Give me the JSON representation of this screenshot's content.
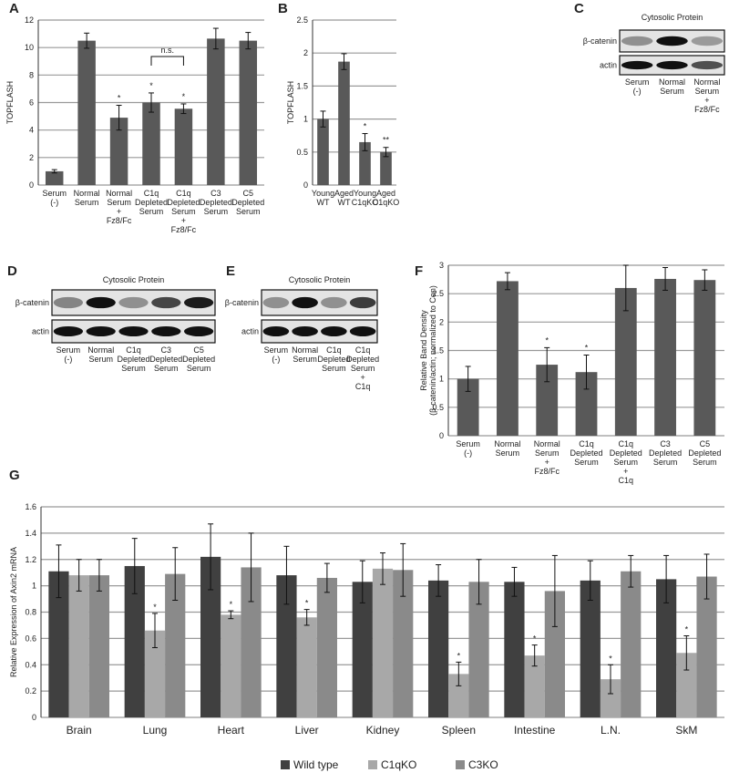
{
  "chart_data": [
    {
      "type": "bar",
      "panel": "A",
      "ylabel": "TOPFLASH",
      "categories": [
        "Serum\n(-)",
        "Normal\nSerum",
        "Normal\nSerum\n+\nFz8/Fc",
        "C1q\nDepleted\nSerum",
        "C1q\nDepleted\nSerum\n+\nFz8/Fc",
        "C3\nDepleted\nSerum",
        "C5\nDepleted\nSerum"
      ],
      "values": [
        1.0,
        10.5,
        4.9,
        6.0,
        5.55,
        10.65,
        10.5
      ],
      "errors": [
        0.12,
        0.55,
        0.9,
        0.7,
        0.35,
        0.75,
        0.6
      ],
      "significance": [
        null,
        null,
        "*",
        "*",
        "*",
        null,
        null
      ],
      "annotations": [
        "n.s."
      ],
      "color": "#595959",
      "ylim": [
        0,
        12
      ],
      "yticks": [
        0,
        2,
        4,
        6,
        8,
        10,
        12
      ],
      "grid": true
    },
    {
      "type": "bar",
      "panel": "B",
      "ylabel": "TOPFLASH",
      "categories": [
        "Young\nWT",
        "Aged\nWT",
        "Young\nC1qKO",
        "Aged\nC1qKO"
      ],
      "values": [
        1.0,
        1.87,
        0.65,
        0.5
      ],
      "errors": [
        0.12,
        0.12,
        0.13,
        0.07
      ],
      "significance": [
        null,
        null,
        "*",
        "**"
      ],
      "color": "#595959",
      "ylim": [
        0,
        2.5
      ],
      "yticks": [
        0,
        0.5,
        1,
        1.5,
        2,
        2.5
      ],
      "grid": true
    },
    {
      "type": "bar",
      "panel": "F",
      "ylabel": "Relative Band Density\n(β-catenin/actin; normalized to Con)",
      "categories": [
        "Serum\n(-)",
        "Normal\nSerum",
        "Normal\nSerum\n+\nFz8/Fc",
        "C1q\nDepleted\nSerum",
        "C1q\nDepleted\nSerum\n+\nC1q",
        "C3\nDepleted\nSerum",
        "C5\nDepleted\nSerum"
      ],
      "values": [
        1.0,
        2.72,
        1.25,
        1.12,
        2.6,
        2.76,
        2.74
      ],
      "errors": [
        0.22,
        0.15,
        0.3,
        0.3,
        0.4,
        0.2,
        0.18
      ],
      "significance": [
        null,
        null,
        "*",
        "*",
        null,
        null,
        null
      ],
      "color": "#595959",
      "ylim": [
        0,
        3
      ],
      "yticks": [
        0,
        0.5,
        1,
        1.5,
        2,
        2.5,
        3
      ],
      "grid": true
    },
    {
      "type": "grouped-bar",
      "panel": "G",
      "ylabel": "Relative Expression of Axin2 mRNA",
      "categories": [
        "Brain",
        "Lung",
        "Heart",
        "Liver",
        "Kidney",
        "Spleen",
        "Intestine",
        "L.N.",
        "SkM"
      ],
      "series": [
        {
          "name": "Wild type",
          "color": "#404040",
          "values": [
            1.11,
            1.15,
            1.22,
            1.08,
            1.03,
            1.04,
            1.03,
            1.04,
            1.05
          ],
          "errors": [
            0.2,
            0.21,
            0.25,
            0.22,
            0.16,
            0.12,
            0.11,
            0.15,
            0.18
          ],
          "significance": [
            null,
            null,
            null,
            null,
            null,
            null,
            null,
            null,
            null
          ]
        },
        {
          "name": "C1qKO",
          "color": "#a8a8a8",
          "values": [
            1.08,
            0.66,
            0.78,
            0.76,
            1.13,
            0.33,
            0.47,
            0.29,
            0.49
          ],
          "errors": [
            0.12,
            0.13,
            0.03,
            0.06,
            0.12,
            0.09,
            0.08,
            0.11,
            0.13
          ],
          "significance": [
            null,
            "*",
            "*",
            "*",
            null,
            "*",
            "*",
            "*",
            "*"
          ]
        },
        {
          "name": "C3KO",
          "color": "#8a8a8a",
          "values": [
            1.08,
            1.09,
            1.14,
            1.06,
            1.12,
            1.03,
            0.96,
            1.11,
            1.07
          ],
          "errors": [
            0.12,
            0.2,
            0.26,
            0.11,
            0.2,
            0.17,
            0.27,
            0.12,
            0.17
          ],
          "significance": [
            null,
            null,
            null,
            null,
            null,
            null,
            null,
            null,
            null
          ]
        }
      ],
      "ylim": [
        0,
        1.6
      ],
      "yticks": [
        0,
        0.2,
        0.4,
        0.6,
        0.8,
        1,
        1.2,
        1.4,
        1.6
      ],
      "grid": true
    }
  ],
  "blots": [
    {
      "panel": "C",
      "title": "Cytosolic Protein",
      "rows": [
        "β-catenin",
        "actin"
      ],
      "lanes": [
        "Serum\n(-)",
        "Normal\nSerum",
        "Normal\nSerum\n+\nFz8/Fc"
      ]
    },
    {
      "panel": "D",
      "title": "Cytosolic Protein",
      "rows": [
        "β-catenin",
        "actin"
      ],
      "lanes": [
        "Serum\n(-)",
        "Normal\nSerum",
        "C1q\nDepleted\nSerum",
        "C3\nDepleted\nSerum",
        "C5\nDepleted\nSerum"
      ]
    },
    {
      "panel": "E",
      "title": "Cytosolic Protein",
      "rows": [
        "β-catenin",
        "actin"
      ],
      "lanes": [
        "Serum\n(-)",
        "Normal\nSerum",
        "C1q\nDepleted\nSerum",
        "C1q\nDepleted\nSerum\n+\nC1q"
      ]
    }
  ]
}
